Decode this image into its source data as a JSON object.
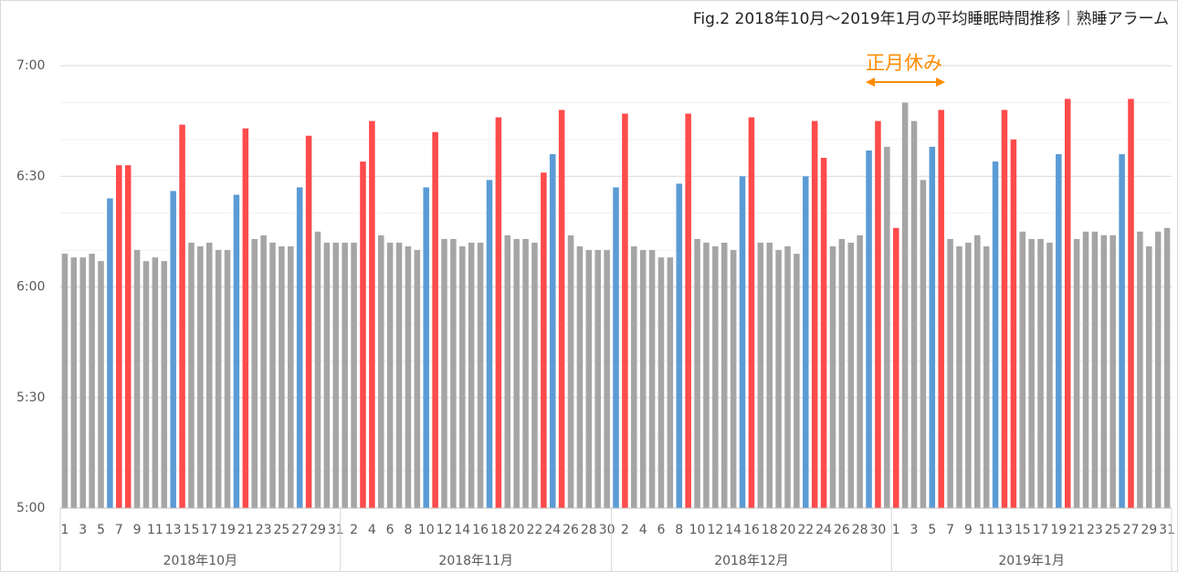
{
  "chart_data": {
    "type": "bar",
    "title": "Fig.2 2018年10月～2019年1月の平均睡眠時間推移｜熟睡アラーム",
    "annotation": {
      "text": "正月休み",
      "color": "#ff8c00"
    },
    "ylim": [
      300,
      420
    ],
    "yticks": [
      {
        "value": 300,
        "label": "5:00"
      },
      {
        "value": 330,
        "label": "5:30"
      },
      {
        "value": 360,
        "label": "6:00"
      },
      {
        "value": 390,
        "label": "6:30"
      },
      {
        "value": 420,
        "label": "7:00"
      }
    ],
    "minor_yticks": [
      310,
      320,
      340,
      350,
      370,
      380,
      400,
      410
    ],
    "grid": true,
    "months": [
      {
        "label": "2018年10月",
        "days": [
          1,
          null,
          3,
          null,
          5,
          null,
          7,
          null,
          9,
          null,
          11,
          null,
          13,
          null,
          15,
          null,
          17,
          null,
          19,
          null,
          21,
          null,
          23,
          null,
          25,
          null,
          27,
          null,
          29,
          null,
          31
        ],
        "values": [
          369,
          368,
          368,
          369,
          367,
          384,
          393,
          393,
          370,
          367,
          368,
          367,
          386,
          404,
          372,
          371,
          372,
          370,
          370,
          385,
          403,
          373,
          374,
          372,
          371,
          371,
          387,
          401,
          375,
          372,
          372
        ],
        "colors": [
          "#a5a5a5",
          "#a5a5a5",
          "#a5a5a5",
          "#a5a5a5",
          "#a5a5a5",
          "#5b9bd5",
          "#ff4b4b",
          "#ff4b4b",
          "#a5a5a5",
          "#a5a5a5",
          "#a5a5a5",
          "#a5a5a5",
          "#5b9bd5",
          "#ff4b4b",
          "#a5a5a5",
          "#a5a5a5",
          "#a5a5a5",
          "#a5a5a5",
          "#a5a5a5",
          "#5b9bd5",
          "#ff4b4b",
          "#a5a5a5",
          "#a5a5a5",
          "#a5a5a5",
          "#a5a5a5",
          "#a5a5a5",
          "#5b9bd5",
          "#ff4b4b",
          "#a5a5a5",
          "#a5a5a5",
          "#a5a5a5"
        ]
      },
      {
        "label": "2018年11月",
        "days": [
          null,
          2,
          null,
          4,
          null,
          6,
          null,
          8,
          null,
          10,
          null,
          12,
          null,
          14,
          null,
          16,
          null,
          18,
          null,
          20,
          null,
          22,
          null,
          24,
          null,
          26,
          null,
          28,
          null,
          30
        ],
        "values": [
          372,
          372,
          394,
          405,
          374,
          372,
          372,
          371,
          370,
          387,
          402,
          373,
          373,
          371,
          372,
          372,
          389,
          406,
          374,
          373,
          373,
          372,
          391,
          396,
          408,
          374,
          371,
          370,
          370,
          370
        ],
        "colors": [
          "#a5a5a5",
          "#a5a5a5",
          "#ff4b4b",
          "#ff4b4b",
          "#a5a5a5",
          "#a5a5a5",
          "#a5a5a5",
          "#a5a5a5",
          "#a5a5a5",
          "#5b9bd5",
          "#ff4b4b",
          "#a5a5a5",
          "#a5a5a5",
          "#a5a5a5",
          "#a5a5a5",
          "#a5a5a5",
          "#5b9bd5",
          "#ff4b4b",
          "#a5a5a5",
          "#a5a5a5",
          "#a5a5a5",
          "#a5a5a5",
          "#ff4b4b",
          "#5b9bd5",
          "#ff4b4b",
          "#a5a5a5",
          "#a5a5a5",
          "#a5a5a5",
          "#a5a5a5",
          "#a5a5a5"
        ]
      },
      {
        "label": "2018年12月",
        "days": [
          null,
          2,
          null,
          4,
          null,
          6,
          null,
          8,
          null,
          10,
          null,
          12,
          null,
          14,
          null,
          16,
          null,
          18,
          null,
          20,
          null,
          22,
          null,
          24,
          null,
          26,
          null,
          28,
          null,
          30,
          null
        ],
        "values": [
          387,
          407,
          371,
          370,
          370,
          368,
          368,
          388,
          407,
          373,
          372,
          371,
          372,
          370,
          390,
          406,
          372,
          372,
          370,
          371,
          369,
          390,
          405,
          395,
          371,
          373,
          372,
          374,
          397,
          405,
          398
        ],
        "colors": [
          "#5b9bd5",
          "#ff4b4b",
          "#a5a5a5",
          "#a5a5a5",
          "#a5a5a5",
          "#a5a5a5",
          "#a5a5a5",
          "#5b9bd5",
          "#ff4b4b",
          "#a5a5a5",
          "#a5a5a5",
          "#a5a5a5",
          "#a5a5a5",
          "#a5a5a5",
          "#5b9bd5",
          "#ff4b4b",
          "#a5a5a5",
          "#a5a5a5",
          "#a5a5a5",
          "#a5a5a5",
          "#a5a5a5",
          "#5b9bd5",
          "#ff4b4b",
          "#ff4b4b",
          "#a5a5a5",
          "#a5a5a5",
          "#a5a5a5",
          "#a5a5a5",
          "#5b9bd5",
          "#ff4b4b",
          "#a5a5a5"
        ]
      },
      {
        "label": "2019年1月",
        "days": [
          1,
          null,
          3,
          null,
          5,
          null,
          7,
          null,
          9,
          null,
          11,
          null,
          13,
          null,
          15,
          null,
          17,
          null,
          19,
          null,
          21,
          null,
          23,
          null,
          25,
          null,
          27,
          null,
          29,
          null,
          31
        ],
        "values": [
          376,
          410,
          405,
          389,
          398,
          408,
          373,
          371,
          372,
          374,
          371,
          394,
          408,
          400,
          375,
          373,
          373,
          372,
          396,
          411,
          373,
          375,
          375,
          374,
          374,
          396,
          411,
          375,
          371,
          375,
          376
        ],
        "colors": [
          "#ff4b4b",
          "#a5a5a5",
          "#a5a5a5",
          "#a5a5a5",
          "#5b9bd5",
          "#ff4b4b",
          "#a5a5a5",
          "#a5a5a5",
          "#a5a5a5",
          "#a5a5a5",
          "#a5a5a5",
          "#5b9bd5",
          "#ff4b4b",
          "#ff4b4b",
          "#a5a5a5",
          "#a5a5a5",
          "#a5a5a5",
          "#a5a5a5",
          "#5b9bd5",
          "#ff4b4b",
          "#a5a5a5",
          "#a5a5a5",
          "#a5a5a5",
          "#a5a5a5",
          "#a5a5a5",
          "#5b9bd5",
          "#ff4b4b",
          "#a5a5a5",
          "#a5a5a5",
          "#a5a5a5",
          "#a5a5a5"
        ]
      }
    ]
  }
}
